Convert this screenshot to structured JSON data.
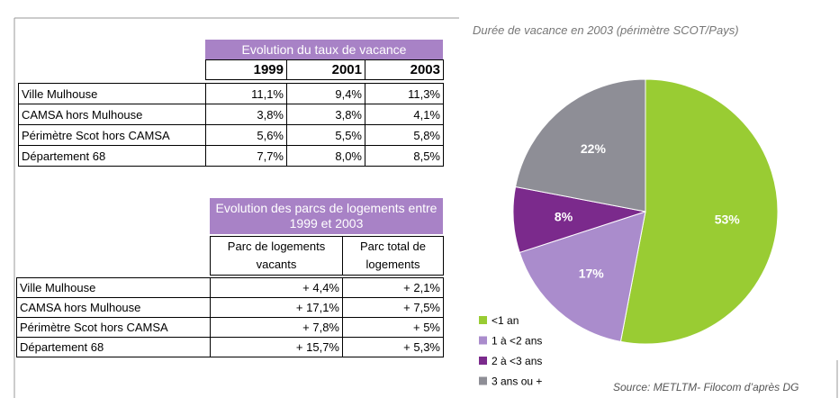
{
  "table1": {
    "title": "Evolution du taux de vacance",
    "columns": [
      "1999",
      "2001",
      "2003"
    ],
    "rows": [
      [
        "Ville Mulhouse",
        "11,1%",
        "9,4%",
        "11,3%"
      ],
      [
        "CAMSA hors Mulhouse",
        "3,8%",
        "3,8%",
        "4,1%"
      ],
      [
        "Périmètre Scot hors CAMSA",
        "5,6%",
        "5,5%",
        "5,8%"
      ],
      [
        "Département 68",
        "7,7%",
        "8,0%",
        "8,5%"
      ]
    ]
  },
  "table2": {
    "title": "Evolution des parcs de logements entre 1999 et 2003",
    "columns": [
      "Parc de logements vacants",
      "Parc total de logements"
    ],
    "rows": [
      [
        "Ville Mulhouse",
        "+ 4,4%",
        "+ 2,1%"
      ],
      [
        "CAMSA hors Mulhouse",
        "+ 17,1%",
        "+ 7,5%"
      ],
      [
        "Périmètre Scot hors CAMSA",
        "+ 7,8%",
        "+ 5%"
      ],
      [
        "Département 68",
        "+ 15,7%",
        "+ 5,3%"
      ]
    ]
  },
  "chart_data": {
    "type": "pie",
    "title": "Durée de vacance en 2003 (périmètre SCOT/Pays)",
    "categories": [
      "<1 an",
      "1 à <2  ans",
      "2 à <3 ans",
      "3 ans ou +"
    ],
    "values": [
      53,
      17,
      8,
      22
    ],
    "value_labels": [
      "53%",
      "17%",
      "8%",
      "22%"
    ],
    "colors": [
      "#99cc33",
      "#aa8ccc",
      "#7b2a8c",
      "#8e8e96"
    ]
  },
  "source": "Source: METLTM- Filocom d’après DG"
}
